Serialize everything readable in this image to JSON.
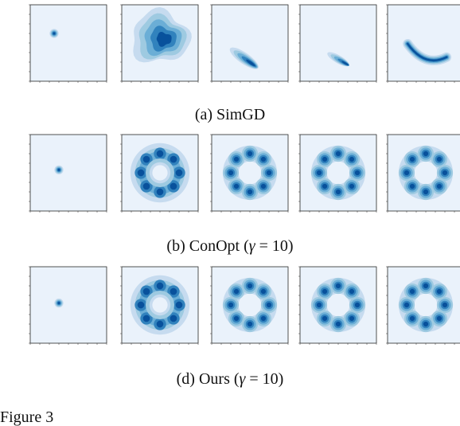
{
  "captions": {
    "simgd": "(a) SimGD",
    "conopt_prefix": "(b) ConOpt (",
    "conopt_var": "γ",
    "conopt_rest": " = 10)",
    "ours_prefix": "(d) Ours (",
    "ours_var": "γ",
    "ours_rest": " = 10)"
  },
  "fig_label": "Figure 3",
  "colors": {
    "background": "#eaf2fb",
    "level1": "#c6dbef",
    "level2": "#9ecae1",
    "level3": "#6baed6",
    "level4": "#3182bd",
    "level5": "#08519c"
  },
  "rows": [
    {
      "method": "SimGD",
      "panels": [
        {
          "shape": "point",
          "cx": -1.5,
          "cy": 1.0,
          "r": 0.35
        },
        {
          "shape": "blob",
          "cx": 0.0,
          "cy": 0.6,
          "r": 3.0
        },
        {
          "shape": "streak",
          "cx": -0.6,
          "cy": -1.6,
          "len": 3.6,
          "angle": -35
        },
        {
          "shape": "streak",
          "cx": 0.0,
          "cy": -1.7,
          "len": 2.6,
          "angle": -30
        },
        {
          "shape": "arc",
          "cx": 0.5,
          "cy": -1.4,
          "len": 4.8,
          "angle": -20
        }
      ]
    },
    {
      "method": "ConOpt",
      "panels": [
        {
          "shape": "point",
          "cx": -1.0,
          "cy": 0.3,
          "r": 0.35
        },
        {
          "shape": "ring",
          "cx": 0.0,
          "cy": 0.0,
          "r": 2.0,
          "n": 8
        },
        {
          "shape": "ring8",
          "cx": 0.0,
          "cy": 0.0,
          "r": 2.0,
          "n": 8
        },
        {
          "shape": "ring8",
          "cx": 0.0,
          "cy": 0.0,
          "r": 2.0,
          "n": 8
        },
        {
          "shape": "ring8",
          "cx": 0.0,
          "cy": 0.0,
          "r": 2.0,
          "n": 8
        }
      ]
    },
    {
      "method": "Ours",
      "panels": [
        {
          "shape": "point",
          "cx": -1.0,
          "cy": 0.2,
          "r": 0.35
        },
        {
          "shape": "ring",
          "cx": 0.0,
          "cy": 0.0,
          "r": 2.0,
          "n": 8
        },
        {
          "shape": "ring8",
          "cx": 0.0,
          "cy": 0.0,
          "r": 2.0,
          "n": 8
        },
        {
          "shape": "ring8",
          "cx": 0.0,
          "cy": 0.0,
          "r": 2.0,
          "n": 8
        },
        {
          "shape": "ring8",
          "cx": 0.0,
          "cy": 0.0,
          "r": 2.0,
          "n": 8
        }
      ]
    }
  ]
}
